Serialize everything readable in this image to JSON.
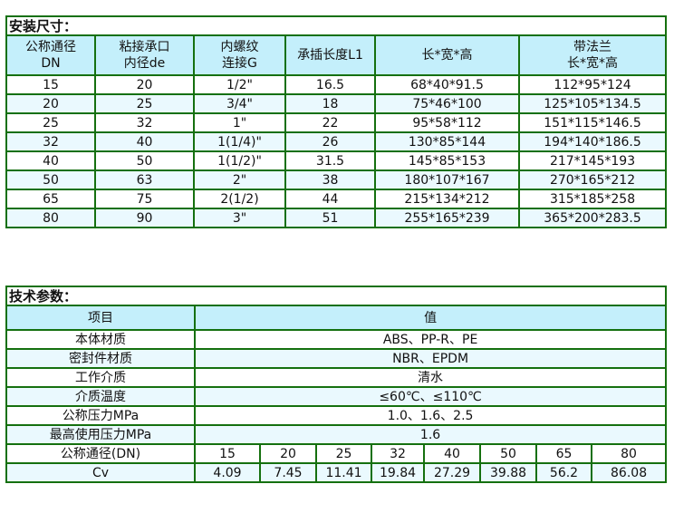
{
  "install": {
    "title": "安装尺寸：",
    "headers": [
      [
        "公称通径",
        "DN"
      ],
      [
        "粘接承口",
        "内径de"
      ],
      [
        "内螺纹",
        "连接G"
      ],
      [
        "承插长度L1",
        ""
      ],
      [
        "长*宽*高",
        ""
      ],
      [
        "带法兰",
        "长*宽*高"
      ]
    ],
    "rows": [
      [
        "15",
        "20",
        "1/2\"",
        "16.5",
        "68*40*91.5",
        "112*95*124"
      ],
      [
        "20",
        "25",
        "3/4\"",
        "18",
        "75*46*100",
        "125*105*134.5"
      ],
      [
        "25",
        "32",
        "1\"",
        "22",
        "95*58*112",
        "151*115*146.5"
      ],
      [
        "32",
        "40",
        "1(1/4)\"",
        "26",
        "130*85*144",
        "194*140*186.5"
      ],
      [
        "40",
        "50",
        "1(1/2)\"",
        "31.5",
        "145*85*153",
        "217*145*193"
      ],
      [
        "50",
        "63",
        "2\"",
        "38",
        "180*107*167",
        "270*165*212"
      ],
      [
        "65",
        "75",
        "2(1/2)",
        "44",
        "215*134*212",
        "315*185*258"
      ],
      [
        "80",
        "90",
        "3\"",
        "51",
        "255*165*239",
        "365*200*283.5"
      ]
    ]
  },
  "tech": {
    "title": "技术参数：",
    "headers": [
      "项目",
      "值"
    ],
    "rows": [
      [
        "本体材质",
        "ABS、PP-R、PE"
      ],
      [
        "密封件材质",
        "NBR、EPDM"
      ],
      [
        "工作介质",
        "清水"
      ],
      [
        "介质温度",
        "≤60℃、≤110℃"
      ],
      [
        "公称压力MPa",
        "1.0、1.6、2.5"
      ],
      [
        "最高使用压力MPa",
        "1.6"
      ]
    ],
    "dn_label": "公称通径(DN)",
    "dn": [
      "15",
      "20",
      "25",
      "32",
      "40",
      "50",
      "65",
      "80"
    ],
    "cv_label": "Cv",
    "cv": [
      "4.09",
      "7.45",
      "11.41",
      "19.84",
      "27.29",
      "39.88",
      "56.2",
      "86.08"
    ]
  }
}
